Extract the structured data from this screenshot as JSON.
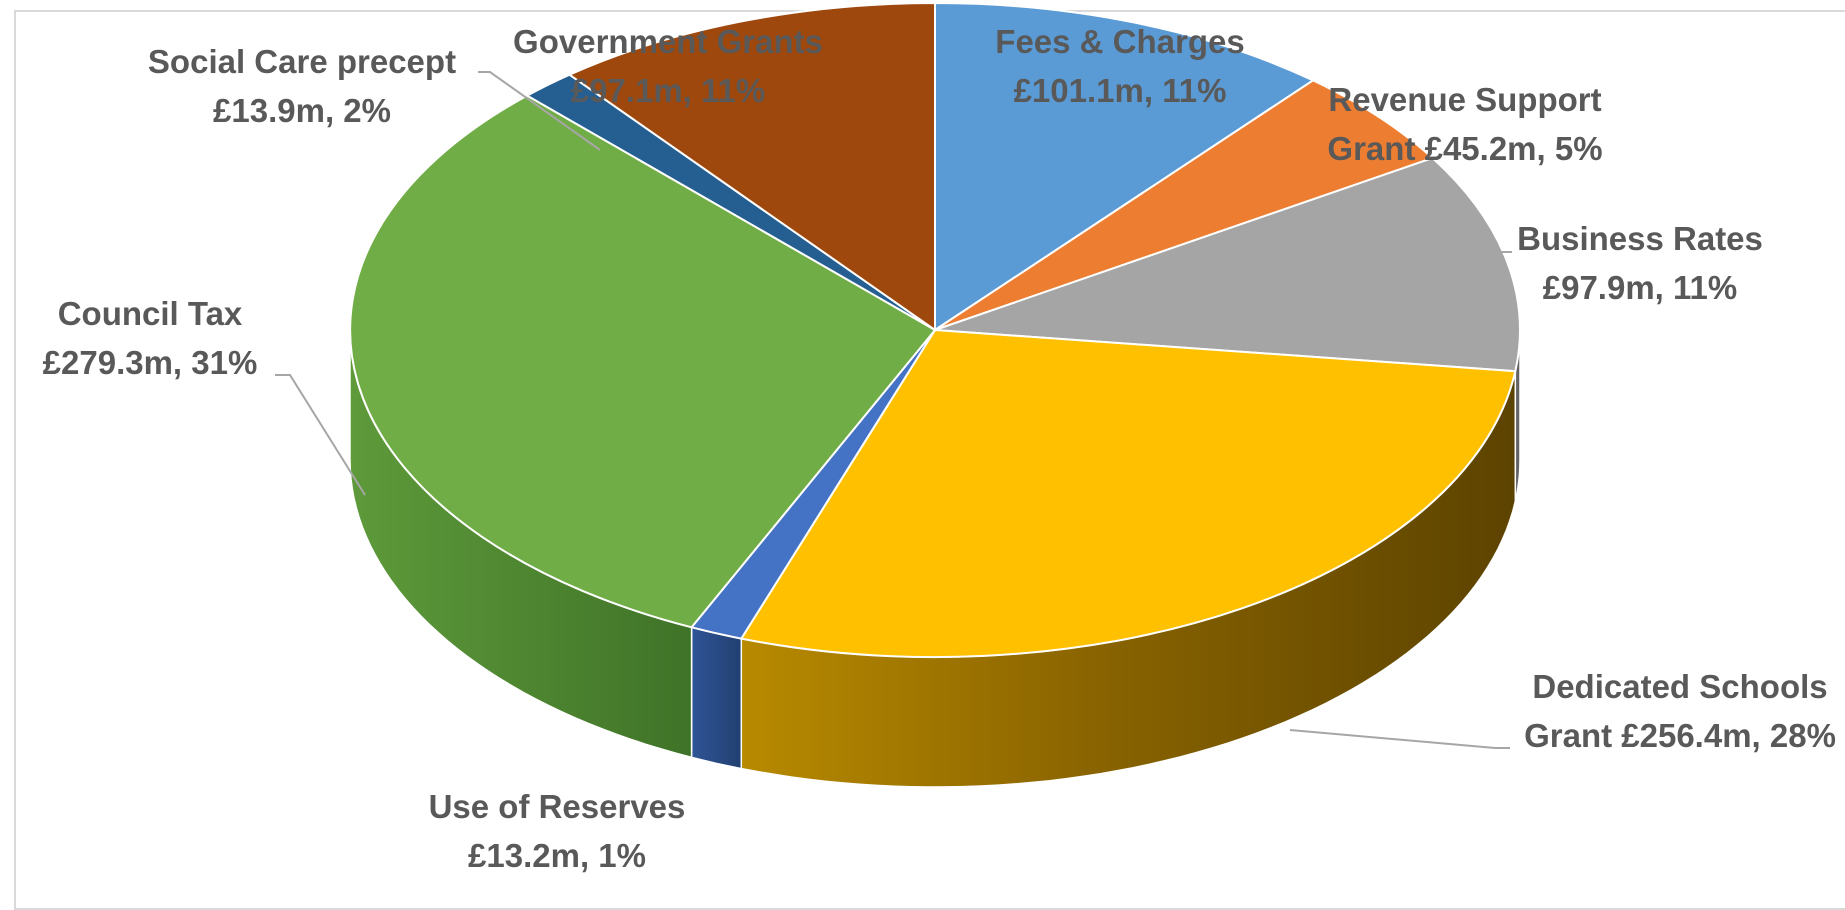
{
  "chart_data": {
    "type": "pie",
    "title": "",
    "style": "3d-exploded-pie",
    "legend": "none",
    "slices": [
      {
        "key": "fees",
        "label": "Fees & Charges",
        "value": 101.1,
        "percent": 11,
        "value_text": "£101.1m, 11%",
        "color": "#5b9bd5"
      },
      {
        "key": "rsg",
        "label": "Revenue Support Grant",
        "value": 45.2,
        "percent": 5,
        "value_text": "£45.2m, 5%",
        "color": "#ed7d31"
      },
      {
        "key": "business",
        "label": "Business Rates",
        "value": 97.9,
        "percent": 11,
        "value_text": "£97.9m, 11%",
        "color": "#a5a5a5"
      },
      {
        "key": "dsg",
        "label": "Dedicated Schools Grant",
        "value": 256.4,
        "percent": 28,
        "value_text": "£256.4m, 28%",
        "color": "#ffc000"
      },
      {
        "key": "reserves",
        "label": "Use of Reserves",
        "value": 13.2,
        "percent": 1,
        "value_text": "£13.2m, 1%",
        "color": "#4472c4"
      },
      {
        "key": "council",
        "label": "Council Tax",
        "value": 279.3,
        "percent": 31,
        "value_text": "£279.3m, 31%",
        "color": "#70ad47"
      },
      {
        "key": "social",
        "label": "Social Care precept",
        "value": 13.9,
        "percent": 2,
        "value_text": "£13.9m, 2%",
        "color": "#255e91"
      },
      {
        "key": "govgrants",
        "label": "Government Grants",
        "value": 97.1,
        "percent": 11,
        "value_text": "£97.1m, 11%",
        "color": "#9e480e"
      }
    ]
  },
  "labels": {
    "fees": {
      "line1": "Fees & Charges",
      "line2": "£101.1m, 11%"
    },
    "rsg": {
      "line1": "Revenue Support",
      "line2": "Grant  £45.2m, 5%"
    },
    "business": {
      "line1": "Business Rates",
      "line2": "£97.9m, 11%"
    },
    "dsg": {
      "line1": "Dedicated Schools",
      "line2": "Grant  £256.4m, 28%"
    },
    "reserves": {
      "line1": "Use of Reserves",
      "line2": "£13.2m, 1%"
    },
    "council": {
      "line1": "Council Tax",
      "line2": "£279.3m, 31%"
    },
    "social": {
      "line1": "Social Care precept",
      "line2": "£13.9m, 2%"
    },
    "govgrants": {
      "line1": "Government Grants",
      "line2": "£97.1m, 11%"
    }
  }
}
